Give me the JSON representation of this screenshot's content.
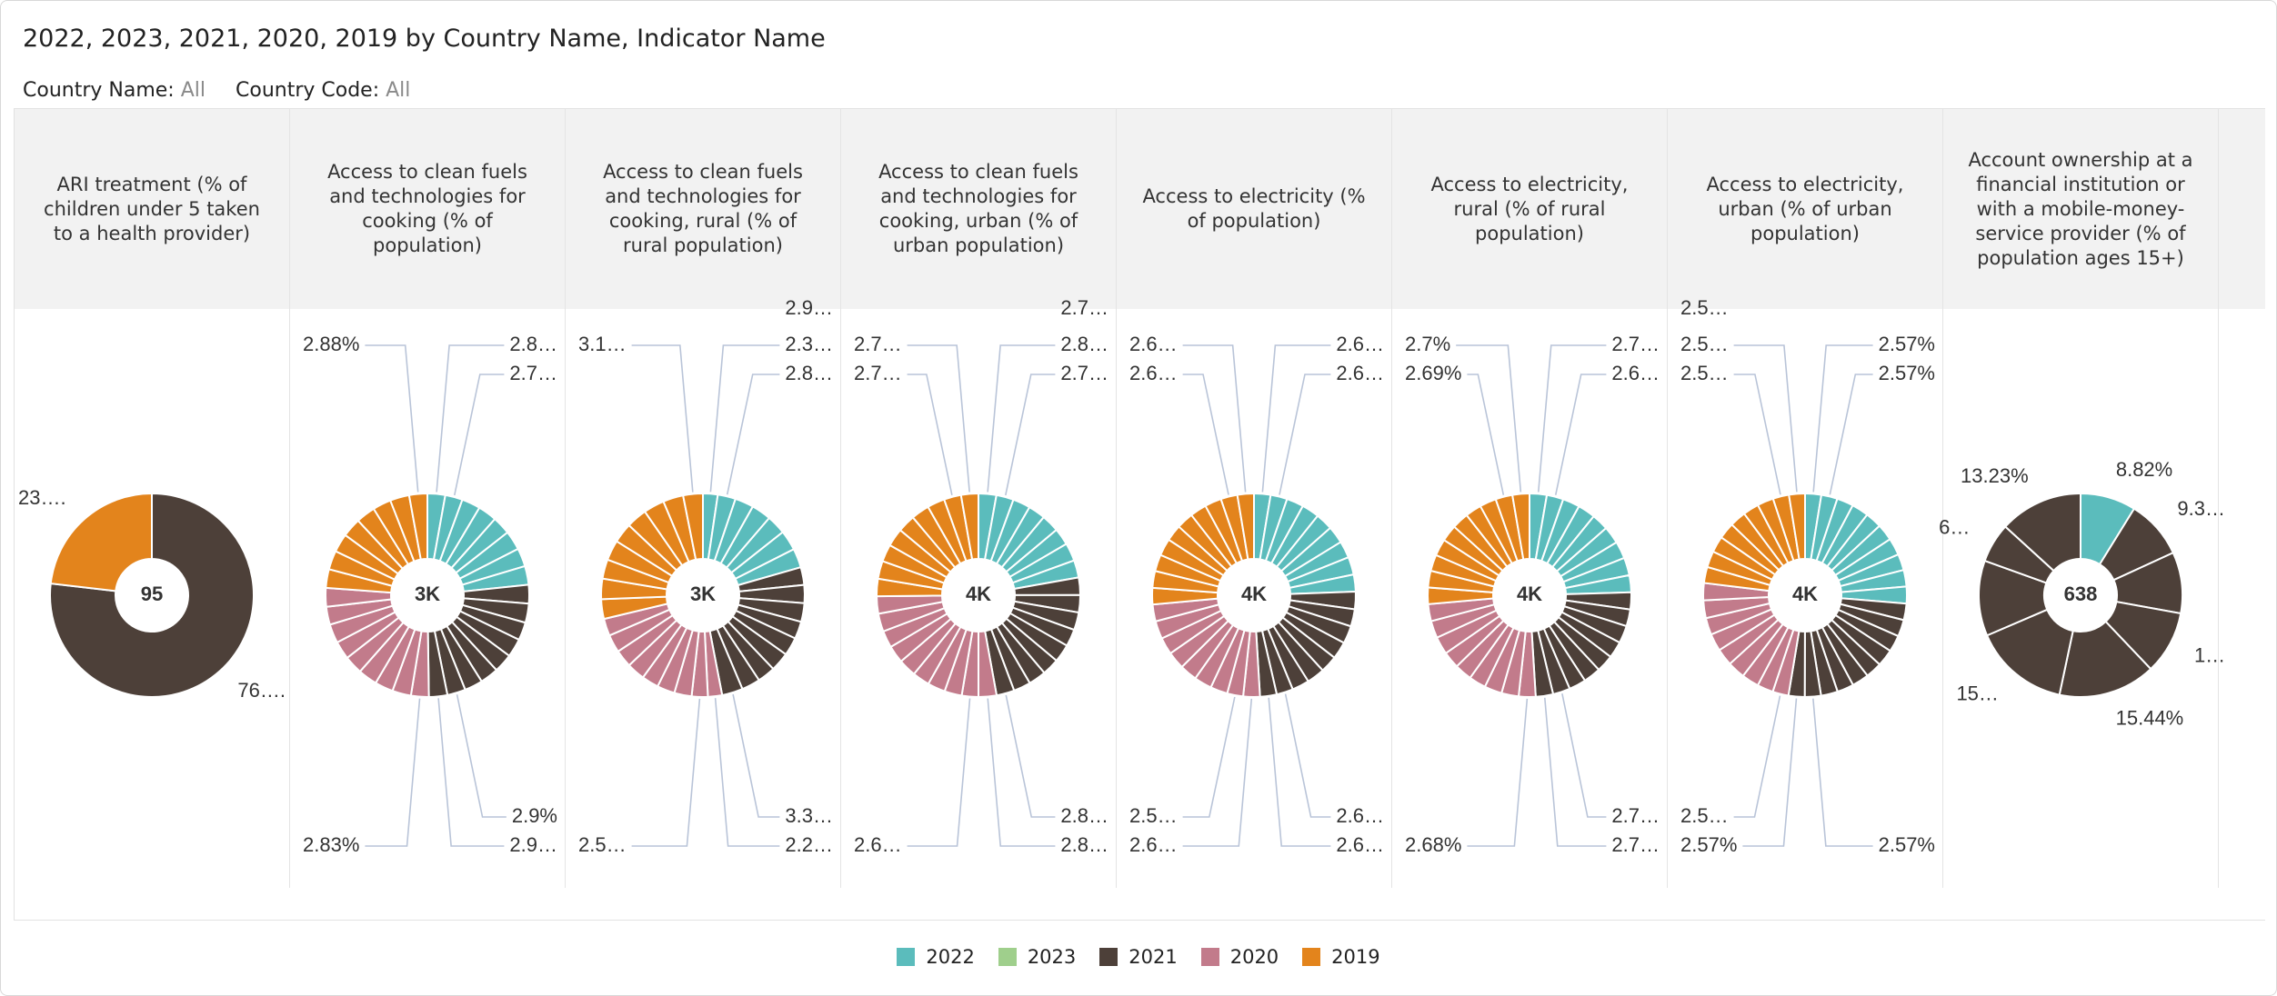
{
  "header": {
    "title": "2022, 2023, 2021, 2020, 2019 by Country Name, Indicator Name",
    "filters": [
      {
        "label": "Country Name:",
        "value": "All"
      },
      {
        "label": "Country Code:",
        "value": "All"
      }
    ]
  },
  "legend": [
    {
      "name": "2022",
      "color": "#5bbcbc"
    },
    {
      "name": "2023",
      "color": "#9fcf8c"
    },
    {
      "name": "2021",
      "color": "#4d4039"
    },
    {
      "name": "2020",
      "color": "#c27b8b"
    },
    {
      "name": "2019",
      "color": "#e3841c"
    }
  ],
  "chart_data": [
    {
      "type": "donut",
      "title": "ARI treatment (% of children under 5 taken to a health provider)",
      "center_label": "95",
      "series": [
        {
          "values": []
        },
        {
          "values": []
        },
        {
          "values": [
            73
          ],
          "value_labels": [
            "76…."
          ]
        },
        {
          "values": []
        },
        {
          "values": [
            22
          ],
          "value_labels": [
            "23…."
          ]
        }
      ]
    },
    {
      "type": "donut",
      "title": "Access to clean fuels and technologies for cooking (% of population)",
      "center_label": "3K",
      "series": [
        {
          "values": [
            96,
            94,
            100,
            102,
            98,
            104,
            99,
            101
          ],
          "value_labels": [
            "2.8…",
            "2.7…",
            null,
            null,
            null,
            null,
            null,
            null
          ]
        },
        {
          "values": []
        },
        {
          "values": [
            101,
            103,
            97,
            100,
            102,
            99,
            98,
            98.6,
            99.5
          ],
          "value_labels": [
            null,
            null,
            null,
            null,
            null,
            null,
            null,
            "2.9%",
            "2.9…"
          ]
        },
        {
          "values": [
            96.2,
            101,
            99,
            103,
            100,
            98,
            102,
            97,
            101
          ],
          "value_labels": [
            "2.83%",
            null,
            null,
            null,
            null,
            null,
            null,
            null,
            null
          ]
        },
        {
          "values": [
            101,
            102,
            100,
            103,
            104,
            99,
            103.7,
            98
          ],
          "value_labels": [
            null,
            null,
            null,
            null,
            null,
            null,
            null,
            "2.88%"
          ]
        }
      ]
    },
    {
      "type": "donut",
      "title": "Access to clean fuels and technologies for cooking, rural (% of rural population)",
      "center_label": "3K",
      "series": [
        {
          "values": [
            75,
            91,
            95,
            100,
            98,
            102,
            97
          ],
          "value_labels": [
            "2.3…",
            "2.8…",
            null,
            null,
            null,
            null,
            null
          ]
        },
        {
          "values": []
        },
        {
          "values": [
            90,
            92,
            95,
            88,
            93,
            96,
            91,
            94,
            106
          ],
          "value_labels": [
            null,
            null,
            null,
            null,
            null,
            null,
            null,
            "2.9…",
            "3.3…"
          ]
        },
        {
          "values": [
            72,
            82,
            88,
            90,
            86,
            92,
            89,
            91,
            87
          ],
          "value_labels": [
            "2.2…",
            "2.5…",
            null,
            null,
            null,
            null,
            null,
            null,
            null
          ]
        },
        {
          "values": [
            100,
            104,
            98,
            103,
            101,
            105,
            106,
            103,
            100
          ],
          "value_labels": [
            null,
            null,
            null,
            null,
            null,
            null,
            null,
            null,
            "3.1…"
          ]
        }
      ]
    },
    {
      "type": "donut",
      "title": "Access to clean fuels and technologies for cooking, urban (% of urban population)",
      "center_label": "4K",
      "series": [
        {
          "values": [
            102,
            99,
            100,
            98,
            101,
            97,
            103,
            99
          ],
          "value_labels": [
            "2.8…",
            "2.7…",
            null,
            null,
            null,
            null,
            null,
            null
          ]
        },
        {
          "values": []
        },
        {
          "values": [
            100,
            99,
            101,
            98,
            103,
            97,
            100,
            98,
            102
          ],
          "value_labels": [
            null,
            null,
            null,
            null,
            null,
            null,
            null,
            "2.7…",
            "2.8…"
          ]
        },
        {
          "values": [
            103,
            95,
            99,
            101,
            98,
            102,
            100,
            97,
            103,
            99
          ],
          "value_labels": [
            "2.8…",
            "2.6…",
            null,
            null,
            null,
            null,
            null,
            null,
            null,
            null
          ]
        },
        {
          "values": [
            100,
            102,
            99,
            103,
            101,
            104,
            100,
            98,
            99
          ],
          "value_labels": [
            null,
            null,
            null,
            null,
            null,
            null,
            null,
            "2.7…",
            "2.7…"
          ]
        }
      ]
    },
    {
      "type": "donut",
      "title": "Access to electricity (% of population)",
      "center_label": "4K",
      "series": [
        {
          "values": [
            97,
            98,
            100,
            103,
            101,
            102,
            99,
            104,
            100
          ],
          "value_labels": [
            "2.6…",
            "2.6…",
            null,
            null,
            null,
            null,
            null,
            null,
            null
          ]
        },
        {
          "values": []
        },
        {
          "values": [
            103,
            101,
            104,
            102,
            100,
            105,
            101,
            97,
            98
          ],
          "value_labels": [
            null,
            null,
            null,
            null,
            null,
            null,
            null,
            "2.6…",
            "2.6…"
          ]
        },
        {
          "values": [
            98,
            94,
            101,
            104,
            102,
            103,
            100,
            105,
            99
          ],
          "value_labels": [
            "2.6…",
            "2.5…",
            null,
            null,
            null,
            null,
            null,
            null,
            null
          ]
        },
        {
          "values": [
            97,
            99,
            98,
            100,
            96,
            99,
            97,
            98,
            98,
            97
          ],
          "value_labels": [
            null,
            null,
            null,
            null,
            null,
            null,
            null,
            null,
            "2.6…",
            "2.6…"
          ]
        }
      ]
    },
    {
      "type": "donut",
      "title": "Access to electricity, rural (% of rural population)",
      "center_label": "4K",
      "series": [
        {
          "values": [
            101,
            98,
            100,
            103,
            99,
            102,
            101,
            104,
            100
          ],
          "value_labels": [
            "2.7…",
            "2.6…",
            null,
            null,
            null,
            null,
            null,
            null,
            null
          ]
        },
        {
          "values": []
        },
        {
          "values": [
            100,
            99,
            103,
            98,
            101,
            102,
            100,
            101,
            102
          ],
          "value_labels": [
            null,
            null,
            null,
            null,
            null,
            null,
            null,
            "2.7…",
            "2.7…"
          ]
        },
        {
          "values": [
            99.2,
            101,
            103,
            100,
            102,
            99,
            104,
            101,
            100
          ],
          "value_labels": [
            "2.68%",
            null,
            null,
            null,
            null,
            null,
            null,
            null,
            null
          ]
        },
        {
          "values": [
            97,
            98,
            96,
            99,
            97,
            98,
            95,
            97.4,
            99.5,
            99.9
          ],
          "value_labels": [
            null,
            null,
            null,
            null,
            null,
            null,
            null,
            null,
            "2.69%",
            "2.7%"
          ]
        }
      ]
    },
    {
      "type": "donut",
      "title": "Access to electricity, urban (% of urban population)",
      "center_label": "4K",
      "series": [
        {
          "values": [
            97.6,
            97.6,
            100,
            102,
            99,
            101,
            103,
            98,
            100,
            102
          ],
          "value_labels": [
            "2.57%",
            "2.57%",
            null,
            null,
            null,
            null,
            null,
            null,
            null,
            null
          ]
        },
        {
          "values": []
        },
        {
          "values": [
            99,
            101,
            100,
            103,
            98,
            102,
            100,
            101,
            97.6,
            97.6
          ],
          "value_labels": [
            null,
            null,
            null,
            null,
            null,
            null,
            null,
            null,
            "2.57%",
            "2.57%"
          ]
        },
        {
          "values": [
            96,
            97,
            104,
            106,
            103,
            105,
            102,
            107,
            104
          ],
          "value_labels": [
            "2.5…",
            "2.5…",
            null,
            null,
            null,
            null,
            null,
            null,
            null
          ]
        },
        {
          "values": [
            97,
            98,
            97.1,
            99,
            98,
            96,
            98,
            97,
            96.5
          ],
          "value_labels": [
            null,
            null,
            null,
            null,
            null,
            null,
            null,
            "2.5…",
            "2.5…"
          ]
        }
      ]
    },
    {
      "type": "donut",
      "title": "Account ownership at a financial institution or with a mobile-money-service provider (% of population ages 15+)",
      "center_label": "638",
      "series": [
        {
          "values": [
            56.27
          ],
          "value_labels": [
            "8.82%"
          ]
        },
        {
          "values": []
        },
        {
          "values": [
            59.5,
            62,
            64,
            98.5,
            97,
            76.33,
            40,
            84.4
          ],
          "value_labels": [
            "9.3…",
            null,
            "1…",
            "15.44%",
            "15…",
            null,
            "6…",
            "13.23%"
          ]
        },
        {
          "values": []
        },
        {
          "values": []
        }
      ]
    }
  ]
}
